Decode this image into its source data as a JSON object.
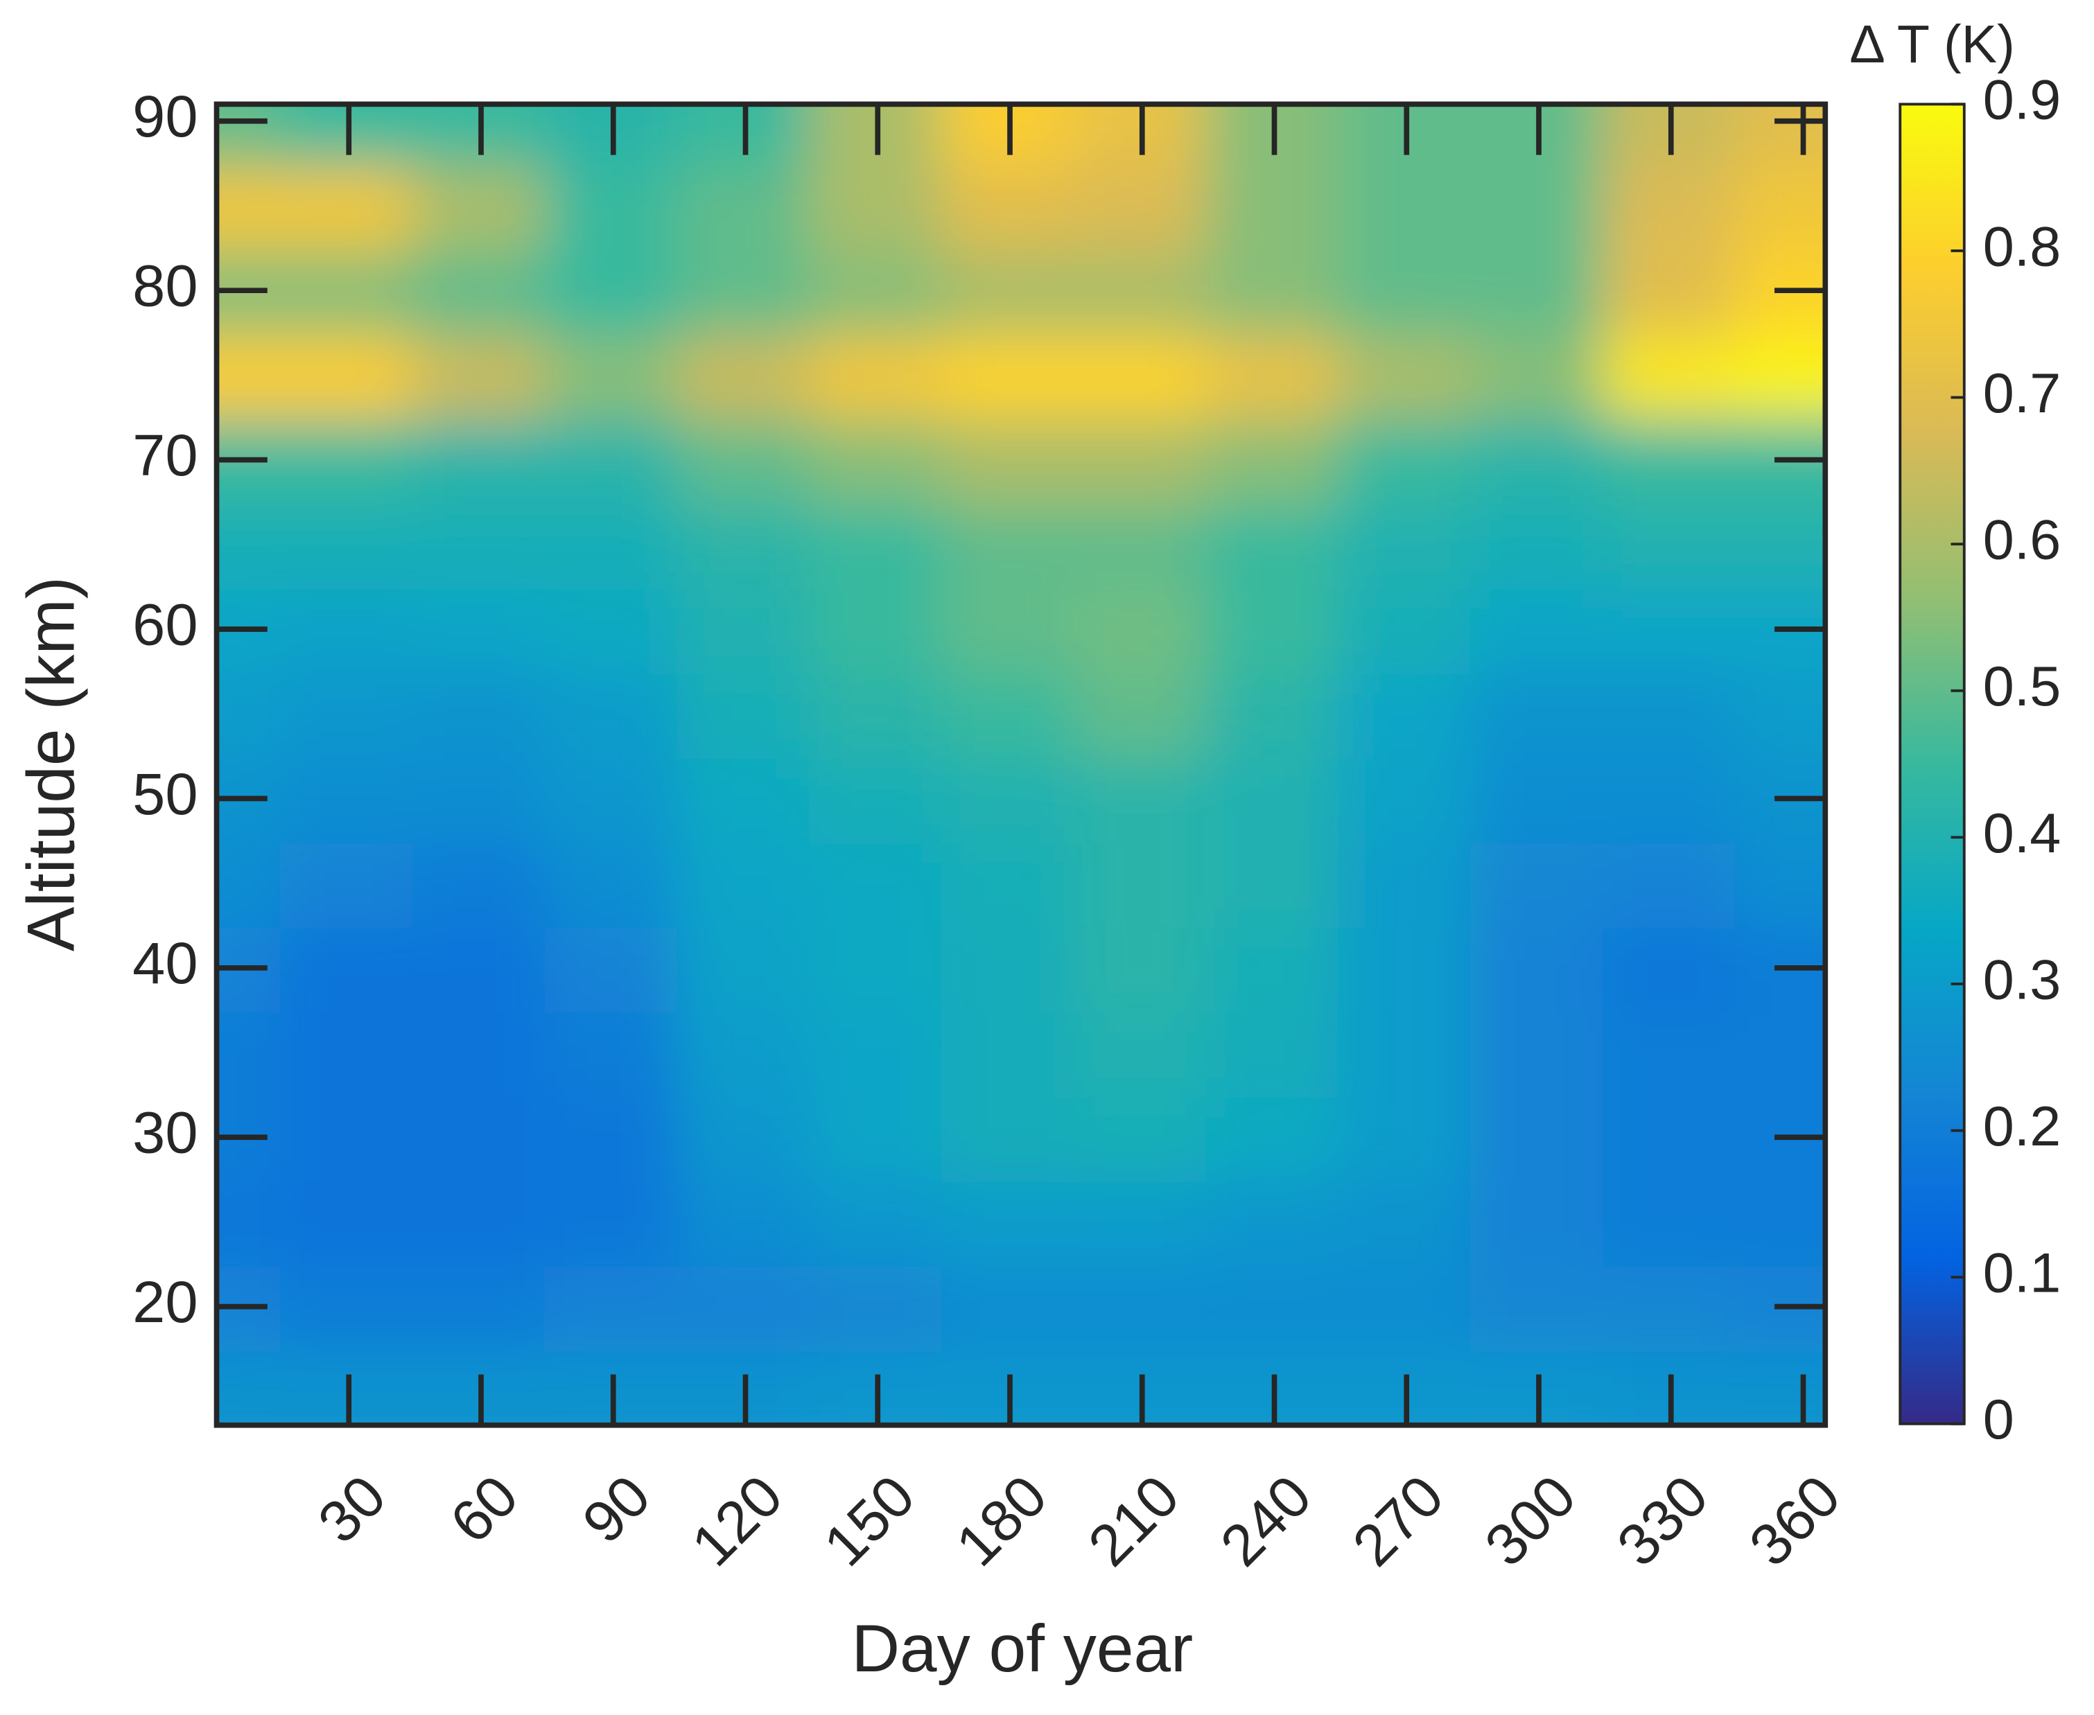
{
  "chart_data": {
    "type": "heatmap",
    "x_label": "Day of year",
    "y_label": "Altitude (km)",
    "x": [
      0,
      30,
      60,
      90,
      120,
      150,
      180,
      210,
      240,
      270,
      300,
      330,
      360
    ],
    "y": [
      15,
      20,
      25,
      30,
      35,
      40,
      45,
      50,
      55,
      60,
      65,
      70,
      75,
      80,
      85,
      90
    ],
    "values": [
      [
        0.27,
        0.27,
        0.27,
        0.27,
        0.27,
        0.28,
        0.28,
        0.28,
        0.28,
        0.28,
        0.28,
        0.27,
        0.27
      ],
      [
        0.22,
        0.2,
        0.2,
        0.22,
        0.22,
        0.23,
        0.25,
        0.25,
        0.25,
        0.25,
        0.23,
        0.23,
        0.22
      ],
      [
        0.18,
        0.17,
        0.17,
        0.18,
        0.25,
        0.28,
        0.3,
        0.3,
        0.28,
        0.27,
        0.22,
        0.2,
        0.2
      ],
      [
        0.2,
        0.17,
        0.17,
        0.18,
        0.28,
        0.33,
        0.37,
        0.38,
        0.35,
        0.3,
        0.22,
        0.2,
        0.2
      ],
      [
        0.2,
        0.17,
        0.17,
        0.2,
        0.3,
        0.33,
        0.37,
        0.4,
        0.37,
        0.3,
        0.22,
        0.2,
        0.2
      ],
      [
        0.22,
        0.17,
        0.17,
        0.22,
        0.32,
        0.35,
        0.37,
        0.42,
        0.38,
        0.3,
        0.22,
        0.18,
        0.2
      ],
      [
        0.25,
        0.22,
        0.2,
        0.25,
        0.33,
        0.35,
        0.38,
        0.42,
        0.4,
        0.3,
        0.23,
        0.22,
        0.25
      ],
      [
        0.27,
        0.25,
        0.25,
        0.28,
        0.35,
        0.38,
        0.4,
        0.42,
        0.4,
        0.32,
        0.25,
        0.25,
        0.27
      ],
      [
        0.3,
        0.28,
        0.27,
        0.3,
        0.38,
        0.42,
        0.45,
        0.5,
        0.42,
        0.33,
        0.27,
        0.27,
        0.3
      ],
      [
        0.33,
        0.32,
        0.33,
        0.35,
        0.4,
        0.45,
        0.5,
        0.52,
        0.45,
        0.38,
        0.33,
        0.33,
        0.33
      ],
      [
        0.38,
        0.38,
        0.38,
        0.38,
        0.42,
        0.45,
        0.5,
        0.5,
        0.45,
        0.4,
        0.38,
        0.4,
        0.4
      ],
      [
        0.45,
        0.45,
        0.42,
        0.42,
        0.5,
        0.55,
        0.6,
        0.6,
        0.55,
        0.45,
        0.42,
        0.45,
        0.45
      ],
      [
        0.78,
        0.78,
        0.65,
        0.55,
        0.65,
        0.75,
        0.8,
        0.8,
        0.72,
        0.6,
        0.55,
        0.85,
        0.88
      ],
      [
        0.55,
        0.55,
        0.5,
        0.45,
        0.5,
        0.55,
        0.6,
        0.6,
        0.55,
        0.5,
        0.5,
        0.7,
        0.8
      ],
      [
        0.75,
        0.75,
        0.6,
        0.45,
        0.5,
        0.6,
        0.7,
        0.68,
        0.55,
        0.5,
        0.5,
        0.68,
        0.75
      ],
      [
        0.5,
        0.45,
        0.45,
        0.42,
        0.45,
        0.6,
        0.78,
        0.72,
        0.55,
        0.5,
        0.5,
        0.65,
        0.7
      ]
    ],
    "xlim": [
      0,
      365
    ],
    "ylim": [
      13,
      91
    ],
    "xticks": [
      30,
      60,
      90,
      120,
      150,
      180,
      210,
      240,
      270,
      300,
      330,
      360
    ],
    "yticks": [
      20,
      30,
      40,
      50,
      60,
      70,
      80,
      90
    ],
    "colorbar": {
      "label": "Δ T (K)",
      "lim": [
        0,
        0.9
      ],
      "ticks": [
        0,
        0.1,
        0.2,
        0.3,
        0.4,
        0.5,
        0.6,
        0.7,
        0.8,
        0.9
      ]
    },
    "colormap": [
      "#352a87",
      "#0363e1",
      "#1485d4",
      "#06a7c6",
      "#38b99e",
      "#92bf73",
      "#d9ba56",
      "#fcce2e",
      "#f9fb0e"
    ]
  }
}
